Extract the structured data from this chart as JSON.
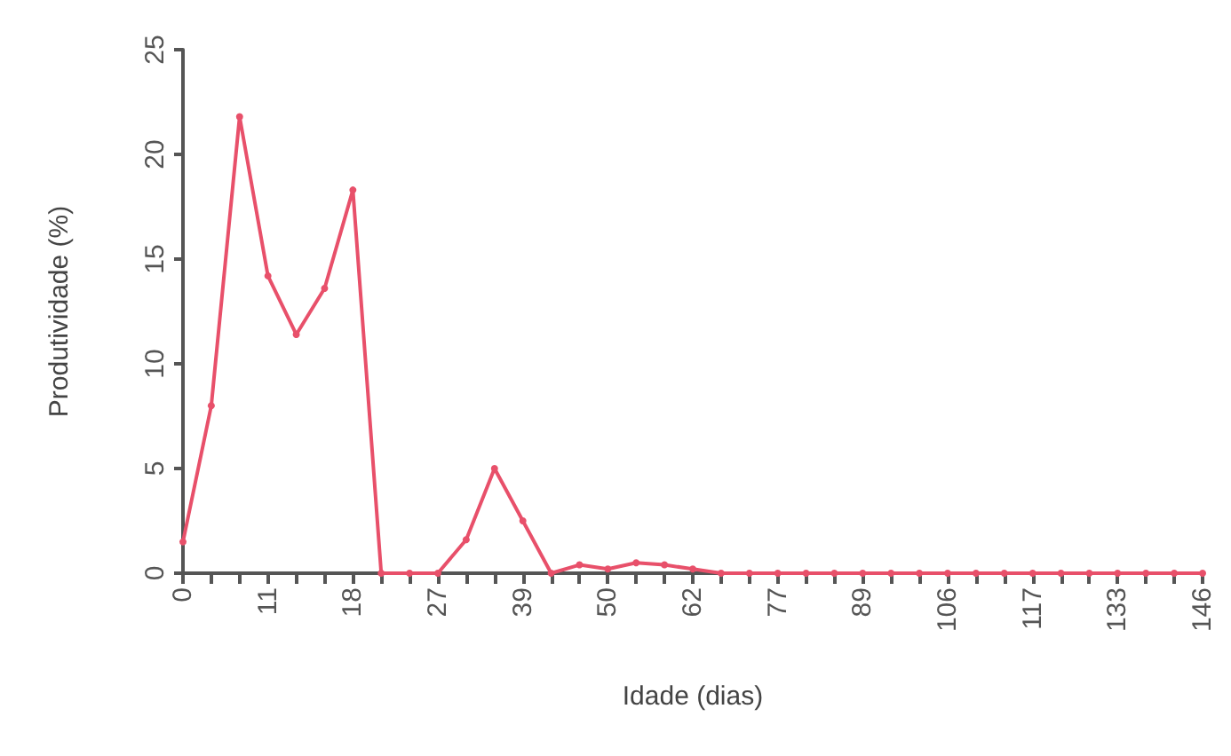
{
  "chart_data": {
    "type": "line",
    "xlabel": "Idade (dias)",
    "ylabel": "Produtividade (%)",
    "categories": [
      "0",
      null,
      null,
      "11",
      null,
      null,
      "18",
      null,
      null,
      "27",
      null,
      null,
      "39",
      null,
      null,
      "50",
      null,
      null,
      "62",
      null,
      null,
      "77",
      null,
      null,
      "89",
      null,
      null,
      "106",
      null,
      null,
      "117",
      null,
      null,
      "133",
      null,
      null,
      "146"
    ],
    "series": [
      {
        "color": "#e8506a",
        "values": [
          1.5,
          8,
          21.8,
          14.2,
          11.4,
          13.6,
          18.3,
          0,
          0,
          0,
          1.6,
          5,
          2.5,
          0,
          0.4,
          0.2,
          0.5,
          0.4,
          0.2,
          0,
          0,
          0,
          0,
          0,
          0,
          0,
          0,
          0,
          0,
          0,
          0,
          0,
          0,
          0,
          0,
          0,
          0
        ]
      }
    ],
    "ylim": [
      0,
      25
    ],
    "yticks": [
      0,
      5,
      10,
      15,
      20,
      25
    ],
    "grid": false,
    "marker": "circle",
    "line_style": "solid"
  }
}
